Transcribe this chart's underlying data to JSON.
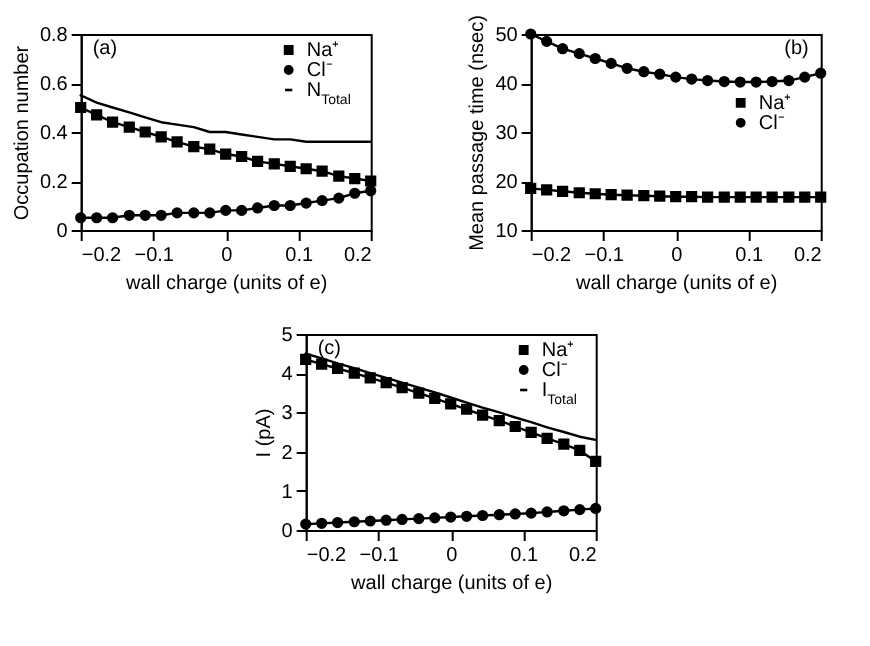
{
  "chart_data": [
    {
      "type": "line",
      "x": [
        -0.2,
        -0.178,
        -0.156,
        -0.133,
        -0.111,
        -0.089,
        -0.067,
        -0.044,
        -0.022,
        0,
        0.022,
        0.044,
        0.067,
        0.089,
        0.111,
        0.133,
        0.156,
        0.178,
        0.2
      ],
      "xlabel": "wall charge (units of e)",
      "ylabel": "Occupation number",
      "annotations": [
        "(a)"
      ],
      "xlim": [
        -0.2,
        0.2
      ],
      "xticks": [
        -0.2,
        -0.1,
        0,
        0.1,
        0.2
      ],
      "ylim": [
        0,
        0.8
      ],
      "yticks": [
        0,
        0.2,
        0.4,
        0.6,
        0.8
      ],
      "legend": "top right",
      "series": [
        {
          "name": "Na⁺",
          "color": "#000000",
          "marker": "square",
          "values": [
            0.5,
            0.47,
            0.44,
            0.42,
            0.4,
            0.38,
            0.36,
            0.34,
            0.33,
            0.31,
            0.3,
            0.28,
            0.27,
            0.26,
            0.25,
            0.24,
            0.22,
            0.21,
            0.2
          ]
        },
        {
          "name": "Cl⁻",
          "color": "#000000",
          "marker": "circle",
          "values": [
            0.05,
            0.05,
            0.05,
            0.06,
            0.06,
            0.06,
            0.07,
            0.07,
            0.07,
            0.08,
            0.08,
            0.09,
            0.1,
            0.1,
            0.11,
            0.12,
            0.13,
            0.15,
            0.16
          ]
        },
        {
          "name": "N$_{Total}$",
          "color": "#000000",
          "marker": "none",
          "values": [
            0.55,
            0.52,
            0.5,
            0.48,
            0.46,
            0.44,
            0.43,
            0.42,
            0.4,
            0.4,
            0.39,
            0.38,
            0.37,
            0.37,
            0.36,
            0.36,
            0.36,
            0.36,
            0.36
          ]
        }
      ]
    },
    {
      "type": "line",
      "x": [
        -0.2,
        -0.178,
        -0.156,
        -0.133,
        -0.111,
        -0.089,
        -0.067,
        -0.044,
        -0.022,
        0,
        0.022,
        0.044,
        0.067,
        0.089,
        0.111,
        0.133,
        0.156,
        0.178,
        0.2
      ],
      "xlabel": "wall charge (units of e)",
      "ylabel": "Mean passage time (nsec)",
      "annotations": [
        "(b)"
      ],
      "xlim": [
        -0.2,
        0.2
      ],
      "xticks": [
        -0.2,
        -0.1,
        0,
        0.1,
        0.2
      ],
      "ylim": [
        10,
        50
      ],
      "yticks": [
        10,
        20,
        30,
        40,
        50
      ],
      "legend": "right",
      "series": [
        {
          "name": "Na⁺",
          "color": "#000000",
          "marker": "square",
          "values": [
            18.5,
            18.2,
            17.9,
            17.6,
            17.4,
            17.2,
            17.1,
            17.0,
            16.9,
            16.8,
            16.8,
            16.7,
            16.7,
            16.7,
            16.7,
            16.7,
            16.7,
            16.7,
            16.7
          ]
        },
        {
          "name": "Cl⁻",
          "color": "#000000",
          "marker": "circle",
          "values": [
            50,
            48.5,
            47,
            46,
            45,
            44,
            43,
            42.3,
            41.8,
            41.2,
            40.8,
            40.5,
            40.3,
            40.2,
            40.2,
            40.3,
            40.5,
            41.2,
            42
          ]
        }
      ]
    },
    {
      "type": "line",
      "x": [
        -0.2,
        -0.178,
        -0.156,
        -0.133,
        -0.111,
        -0.089,
        -0.067,
        -0.044,
        -0.022,
        0,
        0.022,
        0.044,
        0.067,
        0.089,
        0.111,
        0.133,
        0.156,
        0.178,
        0.2
      ],
      "xlabel": "wall charge (units of e)",
      "ylabel": "I (pA)",
      "annotations": [
        "(c)"
      ],
      "xlim": [
        -0.2,
        0.2
      ],
      "xticks": [
        -0.2,
        -0.1,
        0,
        0.1,
        0.2
      ],
      "ylim": [
        0,
        5
      ],
      "yticks": [
        0,
        1,
        2,
        3,
        4,
        5
      ],
      "legend": "top right",
      "series": [
        {
          "name": "Na⁺",
          "color": "#000000",
          "marker": "square",
          "values": [
            4.35,
            4.23,
            4.12,
            4.0,
            3.88,
            3.76,
            3.63,
            3.49,
            3.36,
            3.22,
            3.08,
            2.93,
            2.79,
            2.64,
            2.49,
            2.34,
            2.19,
            2.03,
            1.75
          ]
        },
        {
          "name": "Cl⁻",
          "color": "#000000",
          "marker": "circle",
          "values": [
            0.15,
            0.17,
            0.19,
            0.21,
            0.23,
            0.25,
            0.27,
            0.29,
            0.31,
            0.33,
            0.35,
            0.37,
            0.39,
            0.41,
            0.43,
            0.46,
            0.49,
            0.52,
            0.55
          ]
        },
        {
          "name": "I$_{Total}$",
          "color": "#000000",
          "marker": "none",
          "values": [
            4.5,
            4.38,
            4.25,
            4.13,
            4.0,
            3.88,
            3.76,
            3.63,
            3.51,
            3.38,
            3.25,
            3.12,
            3.0,
            2.87,
            2.75,
            2.62,
            2.5,
            2.38,
            2.3
          ]
        }
      ]
    }
  ]
}
